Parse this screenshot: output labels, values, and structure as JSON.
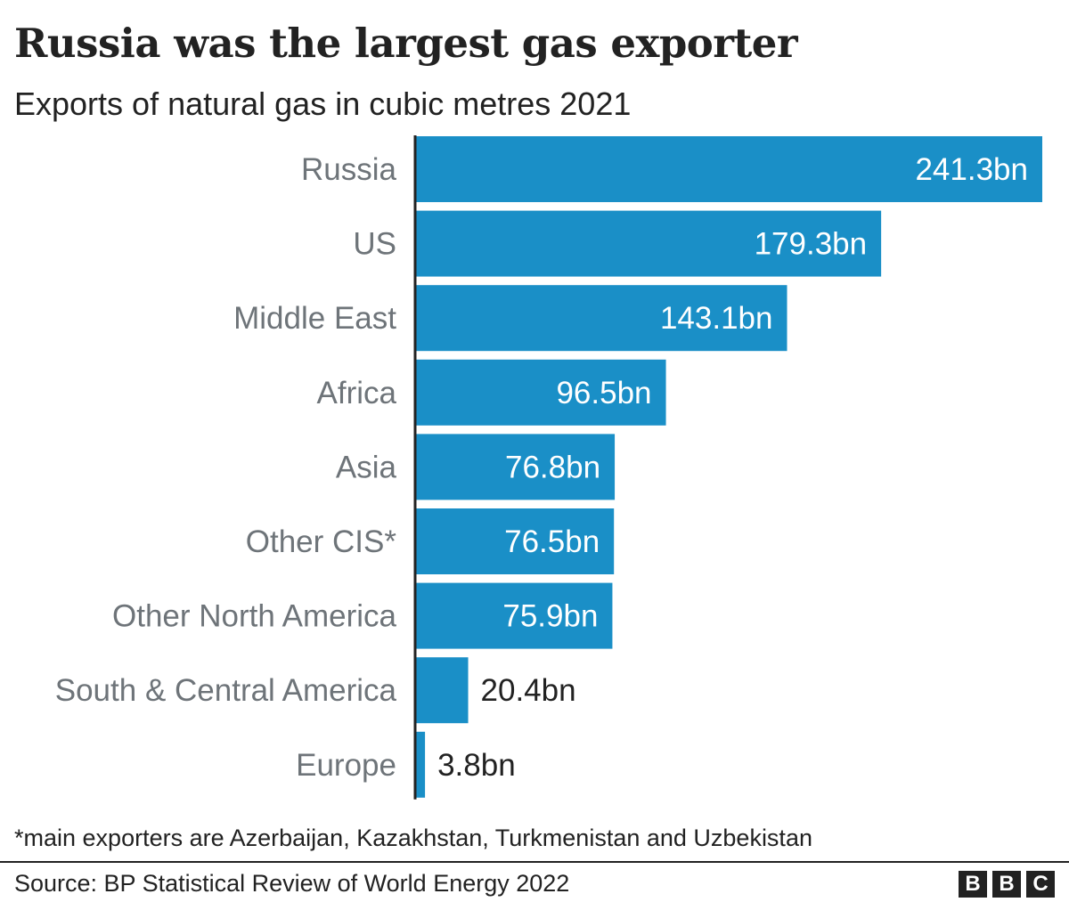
{
  "chart_data": {
    "type": "bar",
    "orientation": "horizontal",
    "title": "Russia was the largest gas exporter",
    "subtitle": "Exports of natural gas in cubic metres 2021",
    "categories": [
      "Russia",
      "US",
      "Middle East",
      "Africa",
      "Asia",
      "Other CIS*",
      "Other North America",
      "South & Central America",
      "Europe"
    ],
    "values": [
      241.3,
      179.3,
      143.1,
      96.5,
      76.8,
      76.5,
      75.9,
      20.4,
      3.8
    ],
    "value_labels": [
      "241.3bn",
      "179.3bn",
      "143.1bn",
      "96.5bn",
      "76.8bn",
      "76.5bn",
      "75.9bn",
      "20.4bn",
      "3.8bn"
    ],
    "xlim": [
      0,
      241.3
    ],
    "grid": false,
    "bar_color": "#1a8fc7"
  },
  "footnote": "*main exporters are Azerbaijan, Kazakhstan, Turkmenistan and Uzbekistan",
  "source": "Source: BP Statistical Review of World Energy 2022",
  "logo": [
    "B",
    "B",
    "C"
  ]
}
